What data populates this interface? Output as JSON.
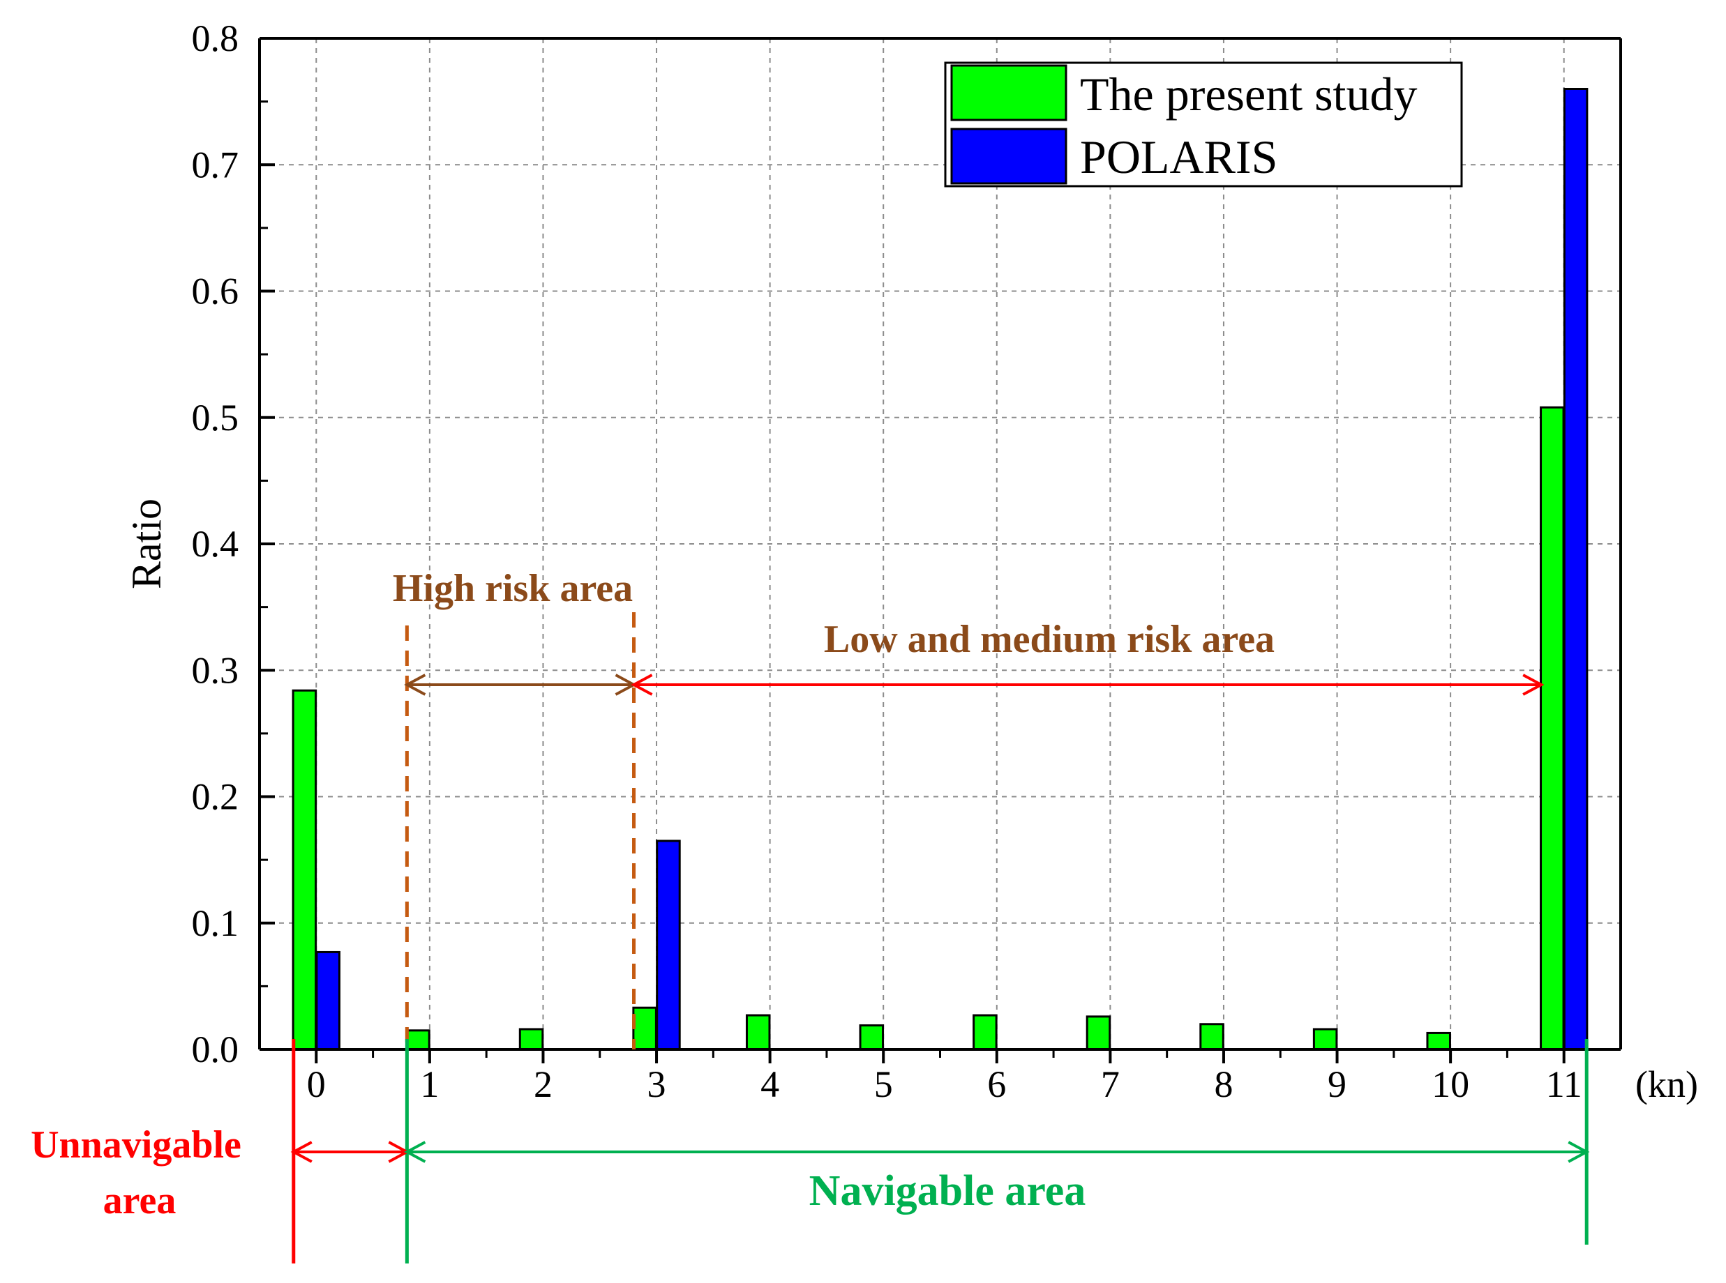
{
  "chart_data": {
    "type": "bar",
    "title": "",
    "xlabel": "",
    "ylabel": "Ratio",
    "x_unit": "(kn)",
    "ylim": [
      0,
      0.8
    ],
    "yticks": [
      "0.0",
      "0.1",
      "0.2",
      "0.3",
      "0.4",
      "0.5",
      "0.6",
      "0.7",
      "0.8"
    ],
    "categories": [
      "0",
      "1",
      "2",
      "3",
      "4",
      "5",
      "6",
      "7",
      "8",
      "9",
      "10",
      "11"
    ],
    "grid": true,
    "legend_position": "top-right",
    "series": [
      {
        "name": "The present study",
        "color": "#00ff00",
        "values": [
          0.284,
          0.015,
          0.016,
          0.033,
          0.027,
          0.019,
          0.027,
          0.026,
          0.02,
          0.016,
          0.013,
          0.508
        ]
      },
      {
        "name": "POLARIS",
        "color": "#0000ff",
        "values": [
          0.077,
          null,
          null,
          0.165,
          null,
          null,
          null,
          null,
          null,
          null,
          null,
          0.76
        ]
      }
    ],
    "annotations": {
      "high_risk": {
        "label": "High risk area",
        "color": "#8b4a1a",
        "from": 0.8,
        "to": 2.8
      },
      "low_medium_risk": {
        "label": "Low and medium risk area",
        "color": "#8b4a1a",
        "arrow_color": "#ff0000",
        "from": 2.8,
        "to": 10.8
      },
      "unnavigable": {
        "label_line1": "Unnavigable",
        "label_line2": "area",
        "color": "#ff0000",
        "from": -0.2,
        "to": 0.8
      },
      "navigable": {
        "label": "Navigable area",
        "color": "#00b050",
        "from": 0.8,
        "to": 11.2
      },
      "boundary_line_color": "#c55a11"
    }
  }
}
